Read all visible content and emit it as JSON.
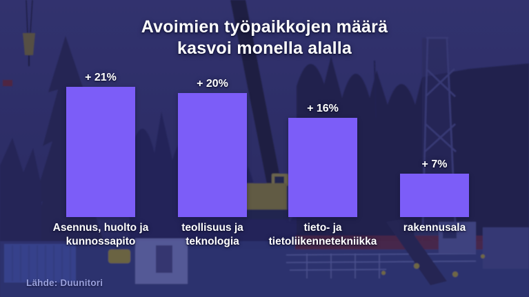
{
  "title_lines": "Avoimien työpaikkojen määrä\nkasvoi monella alalla",
  "source": "Lähde: Duunitori",
  "colors": {
    "bar": "#7C5DF8",
    "overlay_tint": "#2A2B66",
    "text": "#FFFFFF",
    "source_text": "#99A0DC"
  },
  "chart_data": {
    "type": "bar",
    "title": "Avoimien työpaikkojen määrä kasvoi monella alalla",
    "categories": [
      "Asennus, huolto ja kunnossapito",
      "teollisuus ja teknologia",
      "tieto- ja tietoliikennetekniikka",
      "rakennusala"
    ],
    "categories_display": [
      "Asennus, huolto ja\nkunnossapito",
      "teollisuus ja\nteknologia",
      "tieto- ja\ntietoliikennetekniikka",
      "rakennusala"
    ],
    "values": [
      21,
      20,
      16,
      7
    ],
    "value_labels": [
      "+ 21%",
      "+ 20%",
      "+ 16%",
      "+ 7%"
    ],
    "unit": "%",
    "xlabel": "",
    "ylabel": "",
    "ylim": [
      0,
      22
    ],
    "grid": false,
    "legend": "none",
    "bar_color": "#7C5DF8",
    "source": "Lähde: Duunitori"
  },
  "background": {
    "description": "construction site photo dimmed with dark navy-blue tint"
  }
}
